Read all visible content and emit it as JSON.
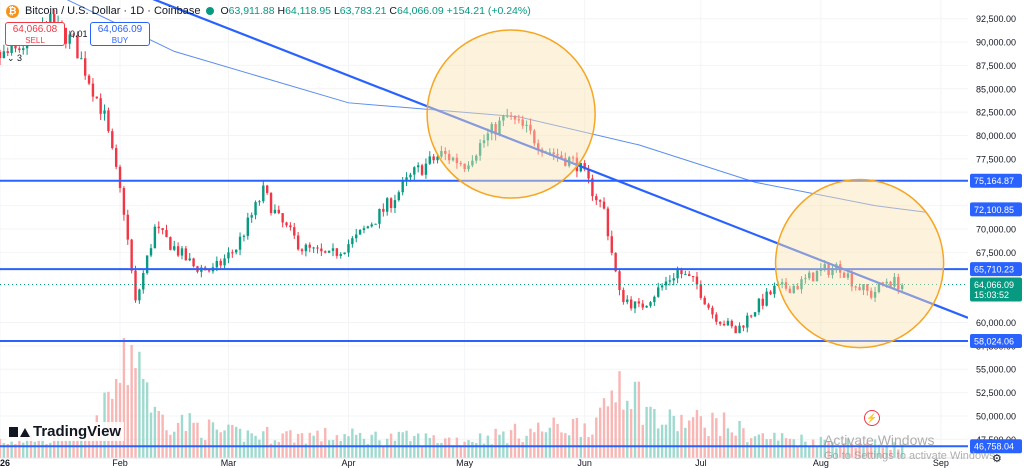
{
  "header": {
    "title": "Bitcoin / U.S. Dollar · 1D · Coinbase",
    "ohlc": {
      "o_label": "O",
      "o": "63,911.88",
      "h_label": "H",
      "h": "64,118.95",
      "l_label": "L",
      "l": "63,783.21",
      "c_label": "C",
      "c": "64,066.09",
      "change": "+154.21 (+0.24%)"
    }
  },
  "trade": {
    "sell_price": "64,066.08",
    "sell_label": "SELL",
    "buy_price": "64,066.09",
    "buy_label": "BUY",
    "spread": "0.01",
    "qty": "3"
  },
  "branding": {
    "logo_text": "TradingView"
  },
  "watermark": {
    "line1": "Activate Windows",
    "line2": "Go to Settings to activate Windows."
  },
  "colors": {
    "up": "#089981",
    "down": "#f23645",
    "line": "#2962ff",
    "circle": "#f5a623",
    "circle_fill": "#fbe3b0"
  },
  "chart_data": {
    "type": "candlestick",
    "symbol": "BTCUSD",
    "timeframe": "1D",
    "xlim": [
      "2026-01-01",
      "2026-09-08"
    ],
    "ylim": [
      45500,
      94500
    ],
    "y_ticks": [
      "92,500.00",
      "90,000.00",
      "87,500.00",
      "85,000.00",
      "82,500.00",
      "80,000.00",
      "77,500.00",
      "72,500.00",
      "70,000.00",
      "67,500.00",
      "60,000.00",
      "57,500.00",
      "55,000.00",
      "52,500.00",
      "50,000.00",
      "47,500.00"
    ],
    "y_tick_values": [
      92500,
      90000,
      87500,
      85000,
      82500,
      80000,
      77500,
      72500,
      70000,
      67500,
      60000,
      57500,
      55000,
      52500,
      50000,
      47500
    ],
    "x_ticks": [
      "2026",
      "Feb",
      "Mar",
      "Apr",
      "May",
      "Jun",
      "Jul",
      "Aug",
      "Sep"
    ],
    "x_tick_dates": [
      "2026-01-01",
      "2026-02-01",
      "2026-03-01",
      "2026-04-01",
      "2026-05-01",
      "2026-06-01",
      "2026-07-01",
      "2026-08-01",
      "2026-09-01"
    ],
    "price_anchors": [
      [
        "2025-12-22",
        87000
      ],
      [
        "2026-01-05",
        89000
      ],
      [
        "2026-01-14",
        92000
      ],
      [
        "2026-01-20",
        90000
      ],
      [
        "2026-01-28",
        82000
      ],
      [
        "2026-02-02",
        72000
      ],
      [
        "2026-02-05",
        62000
      ],
      [
        "2026-02-10",
        70000
      ],
      [
        "2026-02-15",
        68000
      ],
      [
        "2026-02-20",
        66000
      ],
      [
        "2026-02-25",
        65500
      ],
      [
        "2026-03-03",
        68000
      ],
      [
        "2026-03-10",
        74000
      ],
      [
        "2026-03-14",
        71000
      ],
      [
        "2026-03-20",
        68000
      ],
      [
        "2026-03-27",
        67000
      ],
      [
        "2026-04-03",
        69000
      ],
      [
        "2026-04-10",
        72000
      ],
      [
        "2026-04-18",
        76000
      ],
      [
        "2026-04-25",
        78000
      ],
      [
        "2026-05-01",
        77000
      ],
      [
        "2026-05-07",
        80000
      ],
      [
        "2026-05-12",
        82000
      ],
      [
        "2026-05-17",
        80500
      ],
      [
        "2026-05-22",
        78500
      ],
      [
        "2026-05-30",
        77000
      ],
      [
        "2026-06-06",
        72000
      ],
      [
        "2026-06-10",
        63000
      ],
      [
        "2026-06-15",
        61500
      ],
      [
        "2026-06-20",
        63500
      ],
      [
        "2026-06-25",
        65500
      ],
      [
        "2026-06-30",
        64000
      ],
      [
        "2026-07-04",
        61000
      ],
      [
        "2026-07-10",
        59000
      ],
      [
        "2026-07-15",
        61500
      ],
      [
        "2026-07-20",
        63500
      ],
      [
        "2026-07-26",
        64000
      ],
      [
        "2026-08-01",
        65500
      ],
      [
        "2026-08-06",
        66000
      ],
      [
        "2026-08-10",
        64000
      ],
      [
        "2026-08-14",
        63000
      ],
      [
        "2026-08-18",
        64500
      ],
      [
        "2026-08-22",
        64066
      ]
    ],
    "volume_anchors": [
      [
        "2026-01-01",
        1.5
      ],
      [
        "2026-01-25",
        2.0
      ],
      [
        "2026-02-03",
        8.0
      ],
      [
        "2026-02-05",
        10.0
      ],
      [
        "2026-02-10",
        3.5
      ],
      [
        "2026-03-01",
        2.0
      ],
      [
        "2026-04-01",
        1.8
      ],
      [
        "2026-05-01",
        1.5
      ],
      [
        "2026-06-05",
        3.0
      ],
      [
        "2026-06-10",
        7.0
      ],
      [
        "2026-06-20",
        3.0
      ],
      [
        "2026-07-05",
        3.0
      ],
      [
        "2026-07-15",
        1.8
      ],
      [
        "2026-08-01",
        1.4
      ],
      [
        "2026-08-22",
        1.0
      ]
    ],
    "levels": [
      {
        "name": "resistance-high",
        "price": 75164.87,
        "label": "75,164.87"
      },
      {
        "name": "resistance-mid",
        "price": 65710.23,
        "label": "65,710.23"
      },
      {
        "name": "support",
        "price": 58024.06,
        "label": "58,024.06"
      },
      {
        "name": "support-low",
        "price": 46758.04,
        "label": "46,758.04"
      }
    ],
    "trendline": {
      "from": [
        "2026-01-01",
        101000
      ],
      "to": [
        "2026-09-08",
        60500
      ]
    },
    "ma_line": [
      [
        "2026-01-01",
        98000
      ],
      [
        "2026-02-15",
        89000
      ],
      [
        "2026-04-01",
        83500
      ],
      [
        "2026-05-15",
        82000
      ],
      [
        "2026-06-15",
        79000
      ],
      [
        "2026-07-15",
        75000
      ],
      [
        "2026-08-15",
        72500
      ],
      [
        "2026-08-28",
        71800
      ]
    ],
    "highlights": [
      {
        "center": [
          "2026-05-13",
          82300
        ],
        "radius_days": 14
      },
      {
        "center": [
          "2026-08-11",
          66300
        ],
        "radius_days": 14
      }
    ],
    "price_labels": [
      {
        "value": "72,100.85",
        "price": 72100.85,
        "color": "#2962ff"
      },
      {
        "value": "64,066.09",
        "price": 64066.09,
        "color": "#089981",
        "countdown": "15:03:52"
      }
    ]
  }
}
